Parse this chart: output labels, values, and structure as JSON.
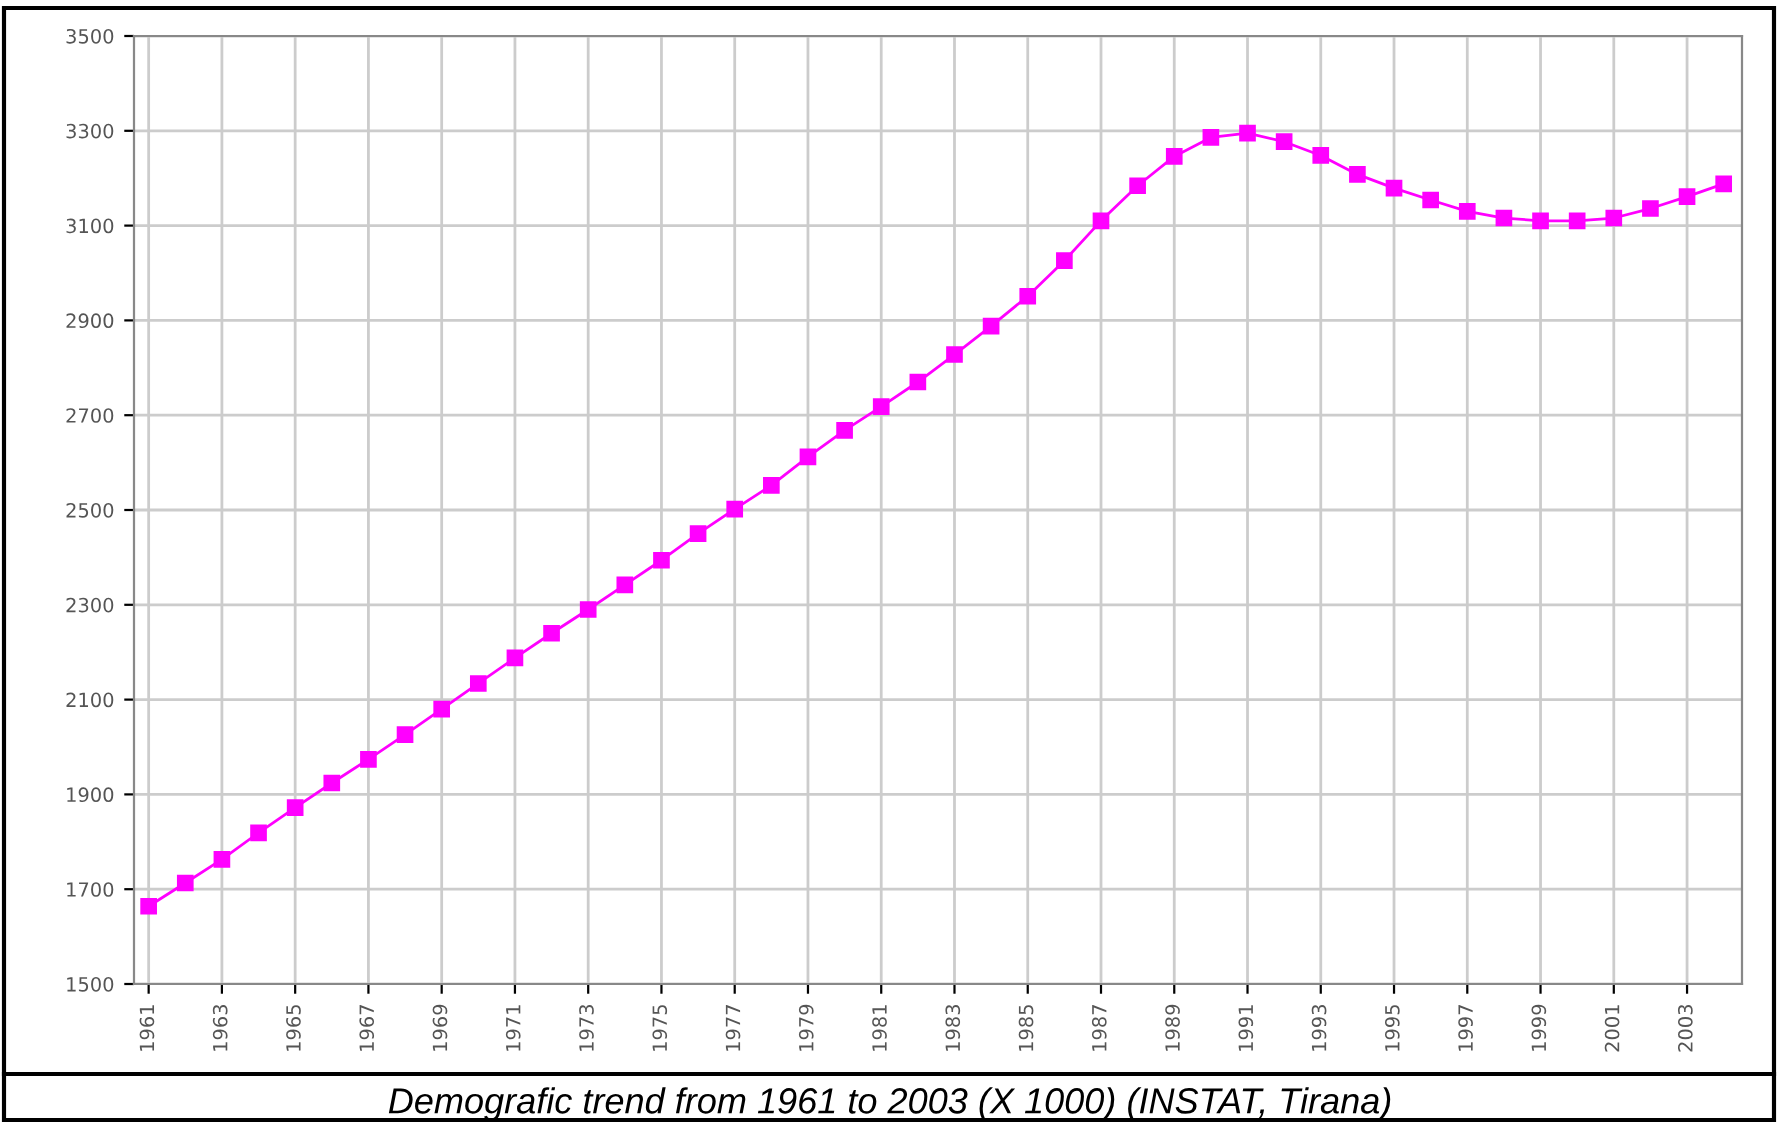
{
  "chart_data": {
    "type": "line",
    "x": [
      1961,
      1962,
      1963,
      1964,
      1965,
      1966,
      1967,
      1968,
      1969,
      1970,
      1971,
      1972,
      1973,
      1974,
      1975,
      1976,
      1977,
      1978,
      1979,
      1980,
      1981,
      1982,
      1983,
      1984,
      1985,
      1986,
      1987,
      1988,
      1989,
      1990,
      1991,
      1992,
      1993,
      1994,
      1995,
      1996,
      1997,
      1998,
      1999,
      2000,
      2001,
      2002,
      2003,
      2004
    ],
    "series": [
      {
        "color": "#ff00ff",
        "values": [
          1664,
          1713,
          1763,
          1819,
          1872,
          1924,
          1974,
          2026,
          2080,
          2134,
          2188,
          2240,
          2290,
          2342,
          2394,
          2450,
          2502,
          2552,
          2612,
          2668,
          2718,
          2770,
          2828,
          2888,
          2951,
          3026,
          3110,
          3184,
          3246,
          3286,
          3295,
          3277,
          3248,
          3208,
          3179,
          3154,
          3130,
          3116,
          3110,
          3110,
          3116,
          3136,
          3161,
          3188
        ]
      }
    ],
    "xlim": [
      1960.6,
      2004.5
    ],
    "xticks": [
      1961,
      1963,
      1965,
      1967,
      1969,
      1971,
      1973,
      1975,
      1977,
      1979,
      1981,
      1983,
      1985,
      1987,
      1989,
      1991,
      1993,
      1995,
      1997,
      1999,
      2001,
      2003
    ],
    "ylim": [
      1500,
      3500
    ],
    "yticks": [
      1500,
      1700,
      1900,
      2100,
      2300,
      2500,
      2700,
      2900,
      3100,
      3300,
      3500
    ],
    "grid": true,
    "marker": "square",
    "line_style": "solid",
    "legend": false,
    "annotations": [
      "Demografic trend from 1961 to 2003 (X 1000) (INSTAT, Tirana)"
    ]
  }
}
